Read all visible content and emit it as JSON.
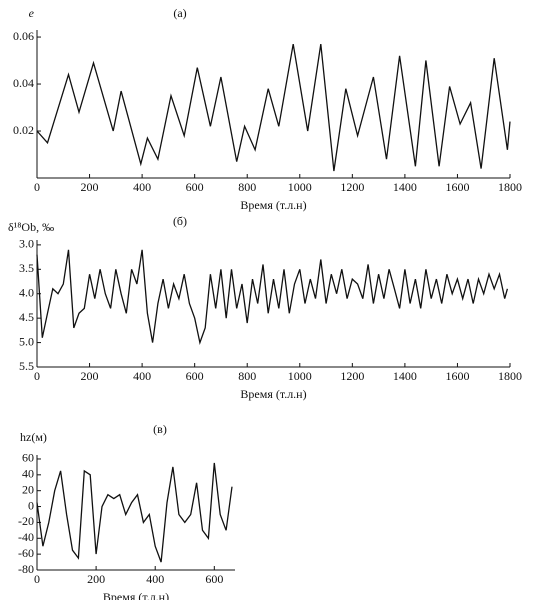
{
  "chart_data": [
    {
      "type": "line",
      "title": "(а)",
      "y_label": "e",
      "x_label": "Время (т.л.н)",
      "xlim": [
        0,
        1800
      ],
      "xticks": [
        0,
        200,
        400,
        600,
        800,
        1000,
        1200,
        1400,
        1600,
        1800
      ],
      "ylim": [
        0,
        0.063
      ],
      "yticks": [
        0.02,
        0.04,
        0.06
      ],
      "color": "#111111",
      "x": [
        0,
        40,
        120,
        160,
        215,
        290,
        320,
        395,
        420,
        460,
        510,
        560,
        610,
        660,
        700,
        760,
        790,
        830,
        880,
        920,
        975,
        1030,
        1080,
        1130,
        1175,
        1220,
        1280,
        1330,
        1380,
        1440,
        1480,
        1530,
        1570,
        1610,
        1650,
        1690,
        1740,
        1790,
        1800
      ],
      "values": [
        0.02,
        0.015,
        0.044,
        0.028,
        0.049,
        0.02,
        0.037,
        0.006,
        0.017,
        0.008,
        0.035,
        0.018,
        0.047,
        0.022,
        0.043,
        0.007,
        0.022,
        0.012,
        0.038,
        0.022,
        0.057,
        0.02,
        0.057,
        0.003,
        0.038,
        0.018,
        0.043,
        0.008,
        0.052,
        0.005,
        0.05,
        0.005,
        0.039,
        0.023,
        0.032,
        0.004,
        0.051,
        0.012,
        0.024
      ]
    },
    {
      "type": "line",
      "title": "(б)",
      "y_label": "δ¹⁸Ob, ‰",
      "x_label": "Время (т.л.н)",
      "xlim": [
        0,
        1800
      ],
      "xticks": [
        0,
        200,
        400,
        600,
        800,
        1000,
        1200,
        1400,
        1600,
        1800
      ],
      "ylim": [
        5.5,
        2.9
      ],
      "yticks": [
        {
          "value": 3,
          "label": "3.0"
        },
        3.5,
        {
          "value": 4,
          "label": "4.0"
        },
        4.5,
        {
          "value": 5,
          "label": "5.0"
        },
        5.5
      ],
      "color": "#111111",
      "x": [
        0,
        20,
        40,
        60,
        80,
        100,
        120,
        140,
        160,
        180,
        200,
        220,
        240,
        260,
        280,
        300,
        320,
        340,
        360,
        380,
        400,
        420,
        440,
        460,
        480,
        500,
        520,
        540,
        560,
        580,
        600,
        620,
        640,
        660,
        680,
        700,
        720,
        740,
        760,
        780,
        800,
        820,
        840,
        860,
        880,
        900,
        920,
        940,
        960,
        980,
        1000,
        1020,
        1040,
        1060,
        1080,
        1100,
        1120,
        1140,
        1160,
        1180,
        1200,
        1220,
        1240,
        1260,
        1280,
        1300,
        1320,
        1340,
        1360,
        1380,
        1400,
        1420,
        1440,
        1460,
        1480,
        1500,
        1520,
        1540,
        1560,
        1580,
        1600,
        1620,
        1640,
        1660,
        1680,
        1700,
        1720,
        1740,
        1760,
        1780,
        1790
      ],
      "values": [
        3.2,
        4.9,
        4.4,
        3.9,
        4.0,
        3.8,
        3.1,
        4.7,
        4.4,
        4.3,
        3.6,
        4.1,
        3.5,
        4.0,
        4.3,
        3.5,
        4.0,
        4.4,
        3.5,
        3.8,
        3.1,
        4.4,
        5.0,
        4.2,
        3.7,
        4.3,
        3.8,
        4.1,
        3.6,
        4.2,
        4.5,
        5.0,
        4.7,
        3.6,
        4.3,
        3.5,
        4.5,
        3.5,
        4.3,
        3.8,
        4.6,
        3.7,
        4.2,
        3.4,
        4.4,
        3.7,
        4.3,
        3.5,
        4.4,
        3.8,
        3.5,
        4.2,
        3.7,
        4.1,
        3.3,
        4.2,
        3.6,
        4.0,
        3.5,
        4.1,
        3.7,
        3.8,
        4.1,
        3.4,
        4.2,
        3.6,
        4.1,
        3.5,
        3.9,
        4.3,
        3.5,
        4.2,
        3.7,
        4.3,
        3.5,
        4.1,
        3.7,
        4.2,
        3.6,
        4.0,
        3.7,
        4.1,
        3.7,
        4.2,
        3.7,
        4.0,
        3.6,
        3.9,
        3.6,
        4.1,
        3.9
      ]
    },
    {
      "type": "line",
      "title": "(в)",
      "y_label": "hz(м)",
      "x_label": "Время (т.л.н)",
      "xlim": [
        0,
        670
      ],
      "xticks": [
        0,
        200,
        400,
        600
      ],
      "ylim": [
        -80,
        65
      ],
      "yticks": [
        -80,
        -60,
        -40,
        -20,
        0,
        20,
        40,
        60
      ],
      "color": "#111111",
      "x": [
        0,
        20,
        40,
        60,
        80,
        100,
        120,
        140,
        160,
        180,
        200,
        220,
        240,
        260,
        280,
        300,
        320,
        340,
        360,
        380,
        400,
        420,
        440,
        460,
        480,
        500,
        520,
        540,
        560,
        580,
        600,
        620,
        640,
        660
      ],
      "values": [
        5,
        -50,
        -20,
        20,
        45,
        -10,
        -55,
        -65,
        45,
        40,
        -60,
        0,
        15,
        10,
        15,
        -10,
        5,
        15,
        -20,
        -10,
        -50,
        -70,
        5,
        50,
        -10,
        -20,
        -10,
        30,
        -30,
        -40,
        55,
        -10,
        -30,
        25
      ]
    }
  ]
}
